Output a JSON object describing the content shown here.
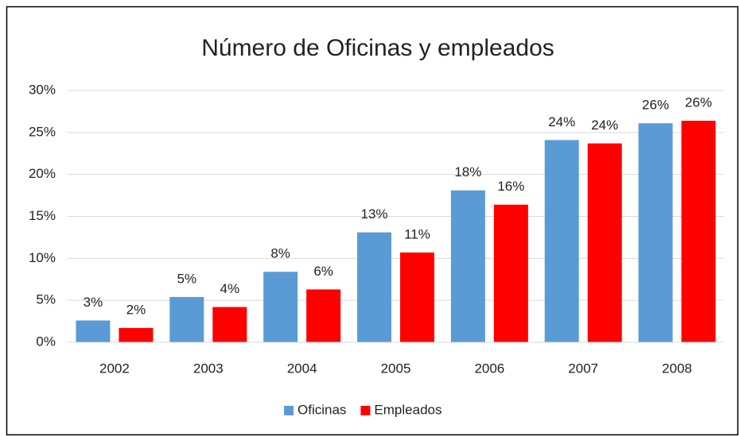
{
  "chart_data": {
    "type": "bar",
    "title": "Número de Oficinas y empleados",
    "categories": [
      "2002",
      "2003",
      "2004",
      "2005",
      "2006",
      "2007",
      "2008"
    ],
    "series": [
      {
        "name": "Oficinas",
        "color": "#5b9bd5",
        "values": [
          2.6,
          5.4,
          8.4,
          13.1,
          18.1,
          24.1,
          26.1
        ],
        "value_labels": [
          "3%",
          "5%",
          "8%",
          "13%",
          "18%",
          "24%",
          "26%"
        ]
      },
      {
        "name": "Empleados",
        "color": "#ff0000",
        "values": [
          1.7,
          4.2,
          6.3,
          10.7,
          16.4,
          23.7,
          26.4
        ],
        "value_labels": [
          "2%",
          "4%",
          "6%",
          "11%",
          "16%",
          "24%",
          "26%"
        ]
      }
    ],
    "ylim": [
      0,
      30
    ],
    "yticks": [
      {
        "value": 0,
        "label": "0%"
      },
      {
        "value": 5,
        "label": "5%"
      },
      {
        "value": 10,
        "label": "10%"
      },
      {
        "value": 15,
        "label": "15%"
      },
      {
        "value": 20,
        "label": "20%"
      },
      {
        "value": 25,
        "label": "25%"
      },
      {
        "value": 30,
        "label": "30%"
      }
    ],
    "grid": true,
    "legend": "bottom"
  }
}
